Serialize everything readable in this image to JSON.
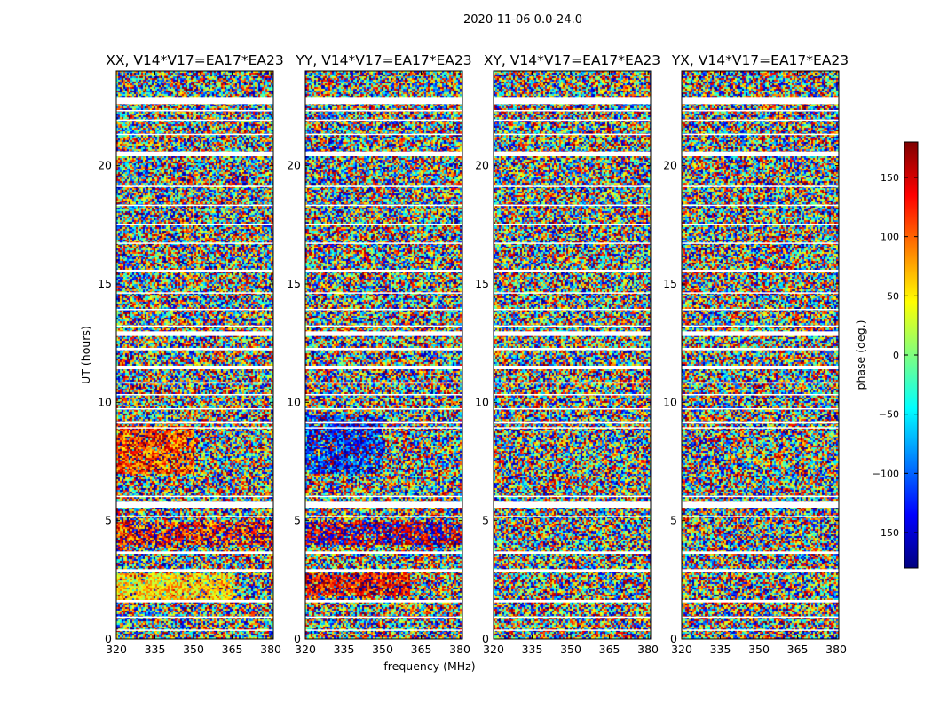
{
  "figure_title": "2020-11-06 0.0-24.0",
  "chart_data": {
    "type": "heatmap",
    "title": "2020-11-06 0.0-24.0",
    "xlabel": "frequency (MHz)",
    "ylabel": "UT (hours)",
    "xlim": [
      320,
      381
    ],
    "ylim": [
      0,
      24
    ],
    "x_ticks": [
      320,
      335,
      350,
      365,
      380
    ],
    "y_ticks": [
      0,
      5,
      10,
      15,
      20
    ],
    "colorbar": {
      "label": "phase (deg.)",
      "range": [
        -180,
        180
      ],
      "ticks": [
        -150,
        -100,
        -50,
        0,
        50,
        100,
        150
      ],
      "colormap": "jet",
      "colors": [
        "#00007f",
        "#0000ff",
        "#007fff",
        "#00ffff",
        "#7fff7f",
        "#ffff00",
        "#ff7f00",
        "#ff0000",
        "#7f0000"
      ]
    },
    "flagged_time_bands_hours": [
      [
        22.6,
        22.9
      ],
      [
        22.3,
        22.35
      ],
      [
        20.4,
        20.6
      ],
      [
        21.9,
        21.95
      ],
      [
        21.3,
        21.35
      ],
      [
        19.1,
        19.15
      ],
      [
        18.3,
        18.35
      ],
      [
        17.5,
        17.55
      ],
      [
        16.7,
        16.75
      ],
      [
        15.5,
        15.6
      ],
      [
        14.6,
        14.65
      ],
      [
        13.9,
        13.95
      ],
      [
        13.2,
        13.25
      ],
      [
        12.8,
        13.0
      ],
      [
        12.2,
        12.3
      ],
      [
        11.4,
        11.55
      ],
      [
        10.8,
        10.85
      ],
      [
        10.3,
        10.35
      ],
      [
        9.7,
        9.75
      ],
      [
        9.1,
        9.2
      ],
      [
        8.9,
        8.95
      ],
      [
        6.0,
        6.05
      ],
      [
        5.55,
        5.8
      ],
      [
        5.15,
        5.2
      ],
      [
        3.6,
        3.7
      ],
      [
        2.85,
        2.95
      ],
      [
        1.55,
        1.65
      ],
      [
        0.9,
        0.95
      ],
      [
        0.35,
        0.4
      ]
    ],
    "panels": [
      {
        "title": "XX, V14*V17=EA17*EA23",
        "coherent_regions": [
          {
            "t": [
              7.0,
              9.0
            ],
            "f": [
              320,
              350
            ],
            "phase_deg": 120,
            "spread_deg": 70
          },
          {
            "t": [
              1.6,
              2.8
            ],
            "f": [
              320,
              365
            ],
            "phase_deg": 55,
            "spread_deg": 55
          },
          {
            "t": [
              4.0,
              5.0
            ],
            "f": [
              320,
              381
            ],
            "phase_deg": 140,
            "spread_deg": 90
          }
        ]
      },
      {
        "title": "YY, V14*V17=EA17*EA23",
        "coherent_regions": [
          {
            "t": [
              7.0,
              9.5
            ],
            "f": [
              320,
              350
            ],
            "phase_deg": -130,
            "spread_deg": 75
          },
          {
            "t": [
              1.8,
              2.8
            ],
            "f": [
              320,
              360
            ],
            "phase_deg": 140,
            "spread_deg": 60
          },
          {
            "t": [
              4.0,
              5.0
            ],
            "f": [
              320,
              381
            ],
            "phase_deg": 175,
            "spread_deg": 80
          }
        ]
      },
      {
        "title": "XY, V14*V17=EA17*EA23",
        "coherent_regions": []
      },
      {
        "title": "YX, V14*V17=EA17*EA23",
        "coherent_regions": []
      }
    ]
  }
}
